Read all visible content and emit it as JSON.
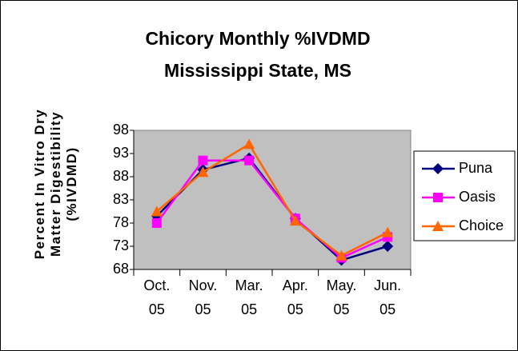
{
  "chart_data": {
    "type": "line",
    "title": "Chicory Monthly %IVDMD",
    "subtitle": "Mississippi State, MS",
    "y_label": "Percent In Vitro Dry Matter Digestibility (%IVDMD)",
    "categories": [
      "Oct. 05",
      "Nov. 05",
      "Mar. 05",
      "Apr. 05",
      "May. 05",
      "Jun. 05"
    ],
    "series": [
      {
        "name": "Puna",
        "color": "#000080",
        "marker": "diamond",
        "values": [
          79.5,
          89.5,
          92,
          79,
          70,
          73
        ]
      },
      {
        "name": "Oasis",
        "color": "#ff00ff",
        "marker": "square",
        "values": [
          78,
          91.5,
          91.5,
          79,
          70.5,
          75
        ]
      },
      {
        "name": "Choice",
        "color": "#ff6600",
        "marker": "triangle",
        "values": [
          80.5,
          89,
          95,
          78.5,
          71,
          76
        ]
      }
    ],
    "ylim": [
      68,
      98
    ],
    "yticks": [
      68,
      73,
      78,
      83,
      88,
      93,
      98
    ],
    "grid": false,
    "legend": "right",
    "plot_background": "#c0c0c0"
  }
}
